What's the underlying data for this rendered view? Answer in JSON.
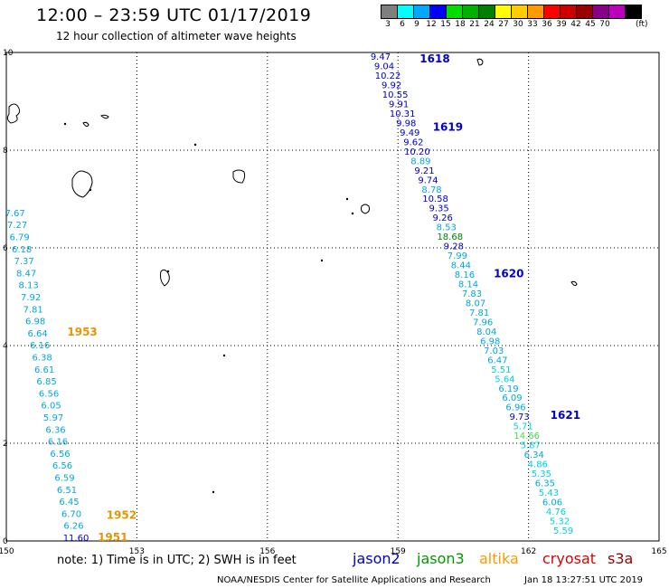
{
  "header": {
    "title": "12:00 – 23:59 UTC 01/17/2019",
    "subtitle": "12 hour collection of altimeter wave heights"
  },
  "color_scale": {
    "labels": [
      "3",
      "6",
      "9",
      "12",
      "15",
      "18",
      "21",
      "24",
      "27",
      "30",
      "33",
      "36",
      "39",
      "42",
      "45",
      "70"
    ],
    "unit": "(ft)",
    "colors": [
      "#7f7f7f",
      "#00ffff",
      "#00a8ff",
      "#0000ff",
      "#00dd00",
      "#00b000",
      "#008000",
      "#ffff00",
      "#ffcc00",
      "#ff9900",
      "#ff0000",
      "#cc0000",
      "#990000",
      "#880088",
      "#bb00bb",
      "#000000"
    ]
  },
  "axes": {
    "x_ticks": [
      "150",
      "153",
      "156",
      "159",
      "162",
      "165"
    ],
    "y_ticks": [
      "0",
      "2",
      "4",
      "6",
      "8",
      "10"
    ]
  },
  "chart_data": {
    "type": "scatter",
    "xlim": [
      150,
      165
    ],
    "ylim": [
      0,
      10
    ],
    "grid": true,
    "passes": [
      {
        "label": "1618",
        "x": 159.5,
        "y": 9.8,
        "color": "#0000cc"
      },
      {
        "label": "1619",
        "x": 159.8,
        "y": 8.4,
        "color": "#0000cc"
      },
      {
        "label": "1620",
        "x": 161.2,
        "y": 5.4,
        "color": "#0000cc"
      },
      {
        "label": "1621",
        "x": 162.5,
        "y": 2.5,
        "color": "#0000cc"
      },
      {
        "label": "1953",
        "x": 151.4,
        "y": 4.2,
        "color": "#e69500"
      },
      {
        "label": "1952",
        "x": 152.3,
        "y": 0.45,
        "color": "#e69500"
      },
      {
        "label": "1951",
        "x": 152.1,
        "y": 0.0,
        "color": "#e69500"
      }
    ],
    "track_east": {
      "values": [
        "9.47",
        "9.04",
        "10.22",
        "9.92",
        "10.55",
        "9.91",
        "10.31",
        "9.98",
        "9.49",
        "9.62",
        "10.20",
        "8.89",
        "9.21",
        "9.74",
        "8.78",
        "10.58",
        "9.35",
        "9.26",
        "8.53",
        "18.68",
        "9.28",
        "7.99",
        "8.44",
        "8.16",
        "8.14",
        "7.83",
        "8.07",
        "7.81",
        "7.96",
        "8.04",
        "6.98",
        "7.03",
        "6.47",
        "5.51",
        "5.64",
        "6.19",
        "6.09",
        "6.96",
        "9.73",
        "5.71",
        "14.66",
        "5.87",
        "6.34",
        "4.86",
        "5.35",
        "6.35",
        "5.43",
        "6.06",
        "4.76",
        "5.32",
        "5.59"
      ],
      "colors": [
        "#0000cc",
        "#0000cc",
        "#0000cc",
        "#0000cc",
        "#0000cc",
        "#0000cc",
        "#0000cc",
        "#0000cc",
        "#0000cc",
        "#0000cc",
        "#0000cc",
        "#00a8e0",
        "#0000cc",
        "#0000cc",
        "#00a8e0",
        "#0000cc",
        "#0000cc",
        "#0000cc",
        "#00a8e0",
        "#008000",
        "#0000cc",
        "#00a8e0",
        "#00a8e0",
        "#00a8e0",
        "#00a8e0",
        "#00a8e0",
        "#00a8e0",
        "#00a8e0",
        "#00a8e0",
        "#00a8e0",
        "#00a8e0",
        "#00a8e0",
        "#00a8e0",
        "#00d0e8",
        "#00d0e8",
        "#00a8e0",
        "#00a8e0",
        "#00a8e0",
        "#0000cc",
        "#00d0e8",
        "#44dd44",
        "#00d0e8",
        "#00a8e0",
        "#00d0e8",
        "#00d0e8",
        "#00a8e0",
        "#00d0e8",
        "#00a8e0",
        "#00d0e8",
        "#00d0e8",
        "#00d0e8"
      ],
      "x_start": 158.6,
      "y_start": 9.85,
      "x_end": 162.8,
      "y_end": 0.15
    },
    "track_west": {
      "values": [
        "7.67",
        "7.27",
        "6.79",
        "6.18",
        "7.37",
        "8.47",
        "8.13",
        "7.92",
        "7.81",
        "6.98",
        "6.64",
        "6.16",
        "6.38",
        "6.61",
        "6.85",
        "6.56",
        "6.05",
        "5.97",
        "6.36",
        "6.16",
        "6.56",
        "6.56",
        "6.59",
        "6.51",
        "6.45",
        "6.70",
        "6.26",
        "11.60"
      ],
      "colors": [
        "#00a8e0",
        "#00a8e0",
        "#00a8e0",
        "#00a8e0",
        "#00a8e0",
        "#00a8e0",
        "#00a8e0",
        "#00a8e0",
        "#00a8e0",
        "#00a8e0",
        "#00a8e0",
        "#00a8e0",
        "#00a8e0",
        "#00a8e0",
        "#00a8e0",
        "#00a8e0",
        "#00a8e0",
        "#00a8e0",
        "#00a8e0",
        "#00a8e0",
        "#00a8e0",
        "#00a8e0",
        "#00a8e0",
        "#00a8e0",
        "#00a8e0",
        "#00a8e0",
        "#00a8e0",
        "#0000cc"
      ],
      "x_start": 150.2,
      "y_start": 6.65,
      "x_end": 151.6,
      "y_end": 0.0
    }
  },
  "footer": {
    "note": "note:  1) Time is in UTC; 2) SWH is in feet",
    "legend": [
      {
        "name": "jason2",
        "color": "#0000cc"
      },
      {
        "name": "jason3",
        "color": "#009900"
      },
      {
        "name": "altika",
        "color": "#ff9900"
      },
      {
        "name": "cryosat",
        "color": "#dd0000"
      },
      {
        "name": "s3a",
        "color": "#990000"
      }
    ],
    "credit": "NOAA/NESDIS Center for Satellite Applications and Research",
    "generated": "Jan 18 13:27:51 UTC 2019"
  }
}
